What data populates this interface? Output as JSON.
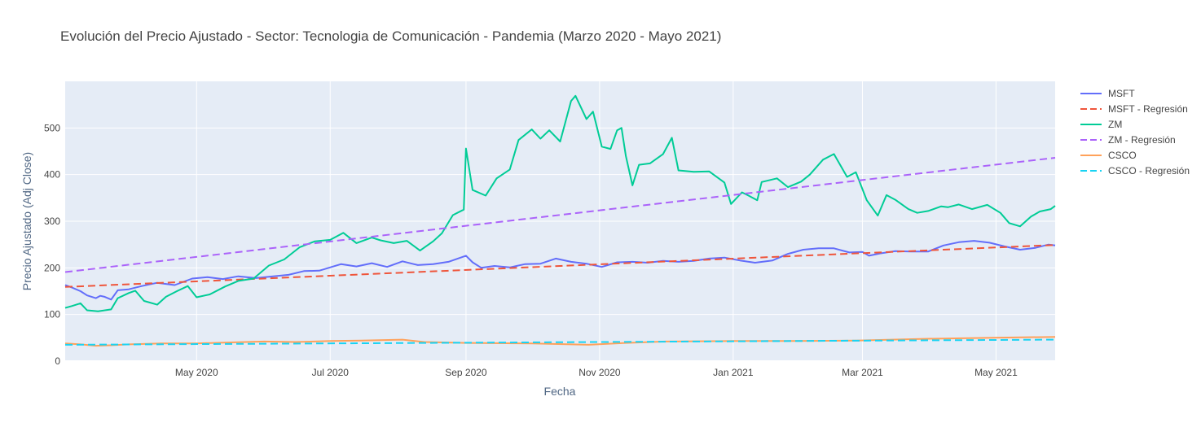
{
  "chart_data": {
    "type": "line",
    "title": "Evolución del Precio Ajustado - Sector: Tecnologia de Comunicación - Pandemia (Marzo 2020 - Mayo 2021)",
    "xlabel": "Fecha",
    "ylabel": "Precio Ajustado (Adj Close)",
    "x_range": [
      "2020-03-02",
      "2021-05-28"
    ],
    "ylim": [
      0,
      600
    ],
    "x_ticks": [
      {
        "date": "2020-05-01",
        "label": "May 2020"
      },
      {
        "date": "2020-07-01",
        "label": "Jul 2020"
      },
      {
        "date": "2020-09-01",
        "label": "Sep 2020"
      },
      {
        "date": "2020-11-01",
        "label": "Nov 2020"
      },
      {
        "date": "2021-01-01",
        "label": "Jan 2021"
      },
      {
        "date": "2021-03-01",
        "label": "Mar 2021"
      },
      {
        "date": "2021-05-01",
        "label": "May 2021"
      }
    ],
    "y_ticks": [
      0,
      100,
      200,
      300,
      400,
      500
    ],
    "grid": true,
    "legend_position": "right",
    "background": "#e5ecf6",
    "series": [
      {
        "name": "MSFT",
        "style": "solid",
        "color": "#636efa",
        "points": [
          [
            "2020-03-02",
            163
          ],
          [
            "2020-03-05",
            158
          ],
          [
            "2020-03-09",
            150
          ],
          [
            "2020-03-12",
            141
          ],
          [
            "2020-03-16",
            135
          ],
          [
            "2020-03-18",
            140
          ],
          [
            "2020-03-20",
            138
          ],
          [
            "2020-03-23",
            132
          ],
          [
            "2020-03-26",
            152
          ],
          [
            "2020-03-31",
            154
          ],
          [
            "2020-04-06",
            161
          ],
          [
            "2020-04-13",
            168
          ],
          [
            "2020-04-21",
            163
          ],
          [
            "2020-04-29",
            177
          ],
          [
            "2020-05-06",
            180
          ],
          [
            "2020-05-13",
            176
          ],
          [
            "2020-05-20",
            182
          ],
          [
            "2020-05-28",
            178
          ],
          [
            "2020-06-05",
            182
          ],
          [
            "2020-06-12",
            185
          ],
          [
            "2020-06-19",
            193
          ],
          [
            "2020-06-26",
            194
          ],
          [
            "2020-07-06",
            208
          ],
          [
            "2020-07-13",
            203
          ],
          [
            "2020-07-20",
            210
          ],
          [
            "2020-07-27",
            202
          ],
          [
            "2020-08-03",
            214
          ],
          [
            "2020-08-10",
            206
          ],
          [
            "2020-08-17",
            208
          ],
          [
            "2020-08-24",
            213
          ],
          [
            "2020-09-01",
            226
          ],
          [
            "2020-09-04",
            212
          ],
          [
            "2020-09-08",
            200
          ],
          [
            "2020-09-14",
            204
          ],
          [
            "2020-09-21",
            201
          ],
          [
            "2020-09-28",
            208
          ],
          [
            "2020-10-05",
            209
          ],
          [
            "2020-10-12",
            220
          ],
          [
            "2020-10-19",
            213
          ],
          [
            "2020-10-26",
            209
          ],
          [
            "2020-11-02",
            202
          ],
          [
            "2020-11-09",
            212
          ],
          [
            "2020-11-16",
            213
          ],
          [
            "2020-11-23",
            211
          ],
          [
            "2020-11-30",
            215
          ],
          [
            "2020-12-07",
            213
          ],
          [
            "2020-12-14",
            215
          ],
          [
            "2020-12-21",
            220
          ],
          [
            "2020-12-28",
            222
          ],
          [
            "2021-01-04",
            216
          ],
          [
            "2021-01-11",
            211
          ],
          [
            "2021-01-19",
            216
          ],
          [
            "2021-01-26",
            230
          ],
          [
            "2021-02-02",
            239
          ],
          [
            "2021-02-09",
            242
          ],
          [
            "2021-02-16",
            242
          ],
          [
            "2021-02-23",
            233
          ],
          [
            "2021-03-01",
            234
          ],
          [
            "2021-03-04",
            226
          ],
          [
            "2021-03-09",
            231
          ],
          [
            "2021-03-16",
            236
          ],
          [
            "2021-03-23",
            235
          ],
          [
            "2021-03-31",
            235
          ],
          [
            "2021-04-07",
            248
          ],
          [
            "2021-04-14",
            255
          ],
          [
            "2021-04-21",
            258
          ],
          [
            "2021-04-28",
            254
          ],
          [
            "2021-05-05",
            246
          ],
          [
            "2021-05-12",
            239
          ],
          [
            "2021-05-19",
            243
          ],
          [
            "2021-05-25",
            250
          ],
          [
            "2021-05-28",
            248
          ]
        ]
      },
      {
        "name": "MSFT - Regresión",
        "style": "dash",
        "color": "#ef553b",
        "points": [
          [
            "2020-03-02",
            159
          ],
          [
            "2021-05-28",
            249
          ]
        ]
      },
      {
        "name": "ZM",
        "style": "solid",
        "color": "#00cc96",
        "points": [
          [
            "2020-03-02",
            114
          ],
          [
            "2020-03-05",
            118
          ],
          [
            "2020-03-09",
            124
          ],
          [
            "2020-03-12",
            109
          ],
          [
            "2020-03-17",
            107
          ],
          [
            "2020-03-23",
            111
          ],
          [
            "2020-03-26",
            135
          ],
          [
            "2020-03-31",
            146
          ],
          [
            "2020-04-03",
            151
          ],
          [
            "2020-04-07",
            129
          ],
          [
            "2020-04-13",
            121
          ],
          [
            "2020-04-17",
            138
          ],
          [
            "2020-04-22",
            150
          ],
          [
            "2020-04-27",
            161
          ],
          [
            "2020-05-01",
            137
          ],
          [
            "2020-05-07",
            143
          ],
          [
            "2020-05-14",
            160
          ],
          [
            "2020-05-20",
            172
          ],
          [
            "2020-05-27",
            177
          ],
          [
            "2020-06-03",
            205
          ],
          [
            "2020-06-10",
            218
          ],
          [
            "2020-06-17",
            244
          ],
          [
            "2020-06-24",
            257
          ],
          [
            "2020-07-01",
            260
          ],
          [
            "2020-07-07",
            275
          ],
          [
            "2020-07-13",
            253
          ],
          [
            "2020-07-20",
            265
          ],
          [
            "2020-07-24",
            259
          ],
          [
            "2020-07-30",
            253
          ],
          [
            "2020-08-05",
            258
          ],
          [
            "2020-08-11",
            237
          ],
          [
            "2020-08-17",
            257
          ],
          [
            "2020-08-21",
            274
          ],
          [
            "2020-08-26",
            313
          ],
          [
            "2020-08-31",
            325
          ],
          [
            "2020-09-01",
            456
          ],
          [
            "2020-09-04",
            367
          ],
          [
            "2020-09-10",
            355
          ],
          [
            "2020-09-15",
            392
          ],
          [
            "2020-09-21",
            411
          ],
          [
            "2020-09-25",
            474
          ],
          [
            "2020-10-01",
            497
          ],
          [
            "2020-10-05",
            477
          ],
          [
            "2020-10-09",
            495
          ],
          [
            "2020-10-14",
            471
          ],
          [
            "2020-10-19",
            558
          ],
          [
            "2020-10-21",
            569
          ],
          [
            "2020-10-26",
            519
          ],
          [
            "2020-10-29",
            535
          ],
          [
            "2020-11-02",
            460
          ],
          [
            "2020-11-06",
            455
          ],
          [
            "2020-11-09",
            495
          ],
          [
            "2020-11-11",
            500
          ],
          [
            "2020-11-13",
            440
          ],
          [
            "2020-11-16",
            377
          ],
          [
            "2020-11-19",
            421
          ],
          [
            "2020-11-24",
            424
          ],
          [
            "2020-11-30",
            444
          ],
          [
            "2020-12-04",
            479
          ],
          [
            "2020-12-07",
            409
          ],
          [
            "2020-12-14",
            406
          ],
          [
            "2020-12-21",
            407
          ],
          [
            "2020-12-28",
            383
          ],
          [
            "2020-12-31",
            337
          ],
          [
            "2021-01-05",
            362
          ],
          [
            "2021-01-08",
            355
          ],
          [
            "2021-01-12",
            345
          ],
          [
            "2021-01-14",
            384
          ],
          [
            "2021-01-21",
            392
          ],
          [
            "2021-01-26",
            373
          ],
          [
            "2021-02-01",
            385
          ],
          [
            "2021-02-05",
            400
          ],
          [
            "2021-02-11",
            432
          ],
          [
            "2021-02-16",
            444
          ],
          [
            "2021-02-22",
            395
          ],
          [
            "2021-02-26",
            405
          ],
          [
            "2021-03-03",
            345
          ],
          [
            "2021-03-08",
            312
          ],
          [
            "2021-03-12",
            356
          ],
          [
            "2021-03-16",
            346
          ],
          [
            "2021-03-22",
            326
          ],
          [
            "2021-03-26",
            318
          ],
          [
            "2021-03-31",
            322
          ],
          [
            "2021-04-06",
            332
          ],
          [
            "2021-04-09",
            330
          ],
          [
            "2021-04-14",
            336
          ],
          [
            "2021-04-20",
            326
          ],
          [
            "2021-04-27",
            335
          ],
          [
            "2021-05-03",
            318
          ],
          [
            "2021-05-07",
            296
          ],
          [
            "2021-05-12",
            289
          ],
          [
            "2021-05-17",
            310
          ],
          [
            "2021-05-21",
            321
          ],
          [
            "2021-05-26",
            326
          ],
          [
            "2021-05-28",
            333
          ]
        ]
      },
      {
        "name": "ZM - Regresión",
        "style": "dash",
        "color": "#ab63fa",
        "points": [
          [
            "2020-03-02",
            191
          ],
          [
            "2021-05-28",
            436
          ]
        ]
      },
      {
        "name": "CSCO",
        "style": "solid",
        "color": "#ffa15a",
        "points": [
          [
            "2020-03-02",
            38
          ],
          [
            "2020-03-09",
            36
          ],
          [
            "2020-03-16",
            33
          ],
          [
            "2020-03-23",
            34
          ],
          [
            "2020-03-31",
            36
          ],
          [
            "2020-04-15",
            38
          ],
          [
            "2020-05-01",
            38
          ],
          [
            "2020-05-15",
            40
          ],
          [
            "2020-06-01",
            42
          ],
          [
            "2020-06-15",
            41
          ],
          [
            "2020-07-01",
            43
          ],
          [
            "2020-07-15",
            44
          ],
          [
            "2020-08-03",
            46
          ],
          [
            "2020-08-13",
            41
          ],
          [
            "2020-09-01",
            39
          ],
          [
            "2020-10-01",
            38
          ],
          [
            "2020-10-27",
            35
          ],
          [
            "2020-11-13",
            39
          ],
          [
            "2020-12-01",
            42
          ],
          [
            "2020-12-31",
            43
          ],
          [
            "2021-01-29",
            43
          ],
          [
            "2021-02-26",
            44
          ],
          [
            "2021-03-31",
            48
          ],
          [
            "2021-04-30",
            50
          ],
          [
            "2021-05-28",
            52
          ]
        ]
      },
      {
        "name": "CSCO - Regresión",
        "style": "dash",
        "color": "#19d3f3",
        "points": [
          [
            "2020-03-02",
            35
          ],
          [
            "2021-05-28",
            46
          ]
        ]
      }
    ]
  }
}
